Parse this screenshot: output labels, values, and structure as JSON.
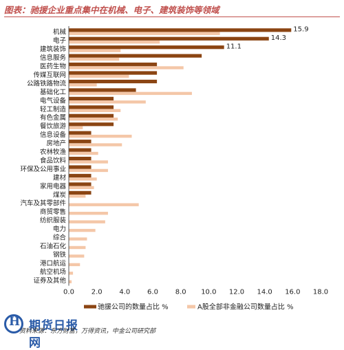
{
  "header": {
    "title": "图表：驰援企业重点集中在机械、电子、建筑装饰等领域"
  },
  "footer": {
    "source": "资料来源：东方财富，万得资讯，中金公司研究部"
  },
  "watermark": {
    "text": "期货日报网"
  },
  "colors": {
    "series1": "#8b4513",
    "series2": "#f4c7a8",
    "title": "#c0504d"
  },
  "chart_data": {
    "type": "bar",
    "orientation": "horizontal",
    "categories": [
      "机械",
      "电子",
      "建筑装饰",
      "信息服务",
      "医药生物",
      "传媒互联网",
      "公路铁路物流",
      "基础化工",
      "电气设备",
      "轻工制造",
      "有色金属",
      "餐饮旅游",
      "信息设备",
      "房地产",
      "农林牧渔",
      "食品饮料",
      "环保及公用事业",
      "建材",
      "家用电器",
      "煤炭",
      "汽车及其零部件",
      "商贸零售",
      "纺织服装",
      "电力",
      "综合",
      "石油石化",
      "钢铁",
      "港口航运",
      "航空机场",
      "证券及其他"
    ],
    "series": [
      {
        "name": "驰援公司的数量占比 %",
        "values": [
          15.9,
          14.3,
          11.1,
          9.5,
          6.3,
          6.3,
          6.3,
          4.8,
          3.2,
          3.2,
          3.2,
          3.2,
          1.6,
          1.6,
          1.6,
          1.6,
          1.6,
          1.6,
          1.6,
          1.6,
          0,
          0,
          0,
          0,
          0,
          0,
          0,
          0,
          0,
          0
        ]
      },
      {
        "name": "A股全部非金融公司数量占比 %",
        "values": [
          10.8,
          6.5,
          3.7,
          3.6,
          8.2,
          4.3,
          2.0,
          8.8,
          5.5,
          3.7,
          3.5,
          1.0,
          4.5,
          3.8,
          2.1,
          2.8,
          2.8,
          2.0,
          1.8,
          1.2,
          5.0,
          2.8,
          2.6,
          1.9,
          1.3,
          1.2,
          1.1,
          0.8,
          0.3,
          0.2
        ]
      }
    ],
    "data_labels": {
      "0": "15.9",
      "1": "14.3",
      "2": "11.1"
    },
    "xlim": [
      0,
      18
    ],
    "xticks": [
      "0.0",
      "2.0",
      "4.0",
      "6.0",
      "8.0",
      "10.0",
      "12.0",
      "14.0",
      "16.0",
      "18.0"
    ],
    "grid": false,
    "legend": "bottom"
  }
}
